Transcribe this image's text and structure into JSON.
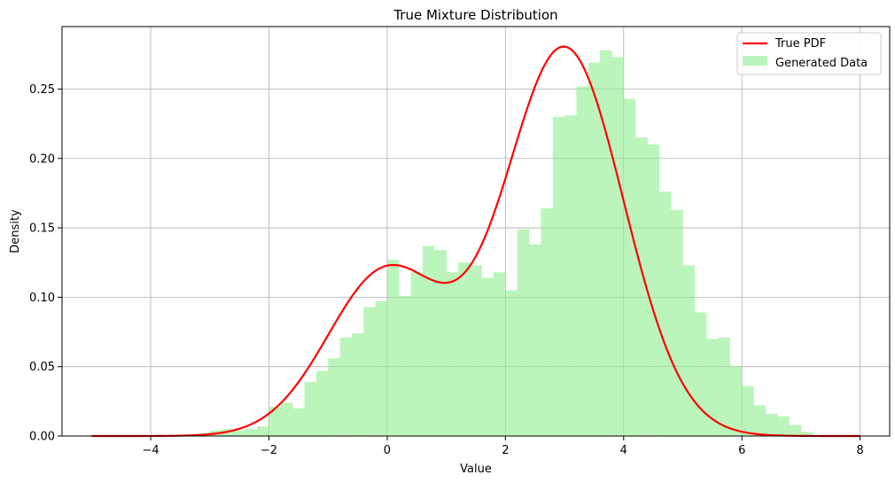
{
  "chart_data": {
    "type": "bar",
    "title": "True Mixture Distribution",
    "xlabel": "Value",
    "ylabel": "Density",
    "xlim": [
      -5.5,
      8.5
    ],
    "ylim": [
      0.0,
      0.295
    ],
    "grid": true,
    "legend_position": "top-right",
    "x_ticks": [
      -4,
      -2,
      0,
      2,
      4,
      6,
      8
    ],
    "x_tick_labels": [
      "−4",
      "−2",
      "0",
      "2",
      "4",
      "6",
      "8"
    ],
    "y_ticks": [
      0.0,
      0.05,
      0.1,
      0.15,
      0.2,
      0.25
    ],
    "y_tick_labels": [
      "0.00",
      "0.05",
      "0.10",
      "0.15",
      "0.20",
      "0.25"
    ],
    "series": [
      {
        "name": "True PDF",
        "kind": "line",
        "color": "#ff0000",
        "mixture": [
          {
            "weight": 0.3,
            "mean": 0.0,
            "sd": 1.0
          },
          {
            "weight": 0.7,
            "mean": 3.0,
            "sd": 1.0
          }
        ],
        "x_range": [
          -5,
          8
        ]
      },
      {
        "name": "Generated Data",
        "kind": "histogram",
        "color": "#90ee90",
        "bin_width": 0.2,
        "bin_start": -3.2,
        "values": [
          0.002,
          0.004,
          0.005,
          0.004,
          0.005,
          0.007,
          0.021,
          0.024,
          0.02,
          0.039,
          0.047,
          0.056,
          0.071,
          0.074,
          0.093,
          0.097,
          0.127,
          0.101,
          0.118,
          0.137,
          0.134,
          0.118,
          0.125,
          0.123,
          0.114,
          0.118,
          0.105,
          0.149,
          0.138,
          0.164,
          0.23,
          0.231,
          0.252,
          0.269,
          0.278,
          0.273,
          0.243,
          0.215,
          0.21,
          0.176,
          0.163,
          0.123,
          0.089,
          0.07,
          0.071,
          0.05,
          0.036,
          0.022,
          0.016,
          0.014,
          0.008,
          0.003
        ]
      }
    ]
  }
}
